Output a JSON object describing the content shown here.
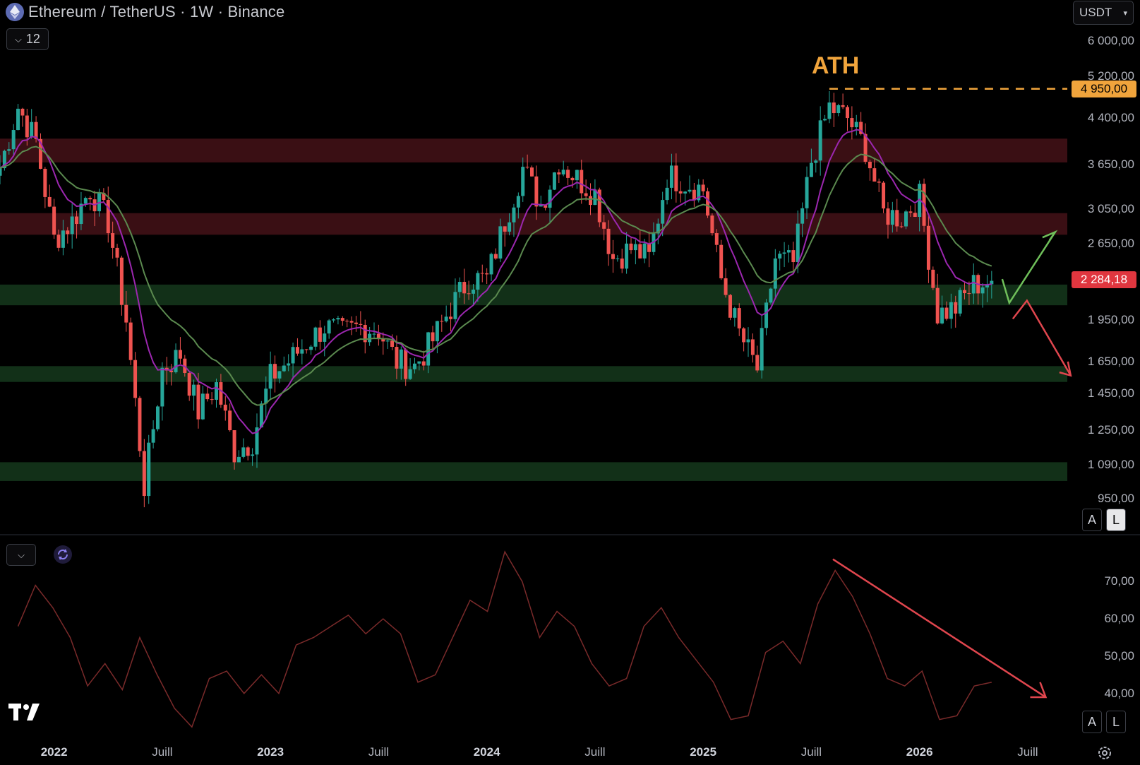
{
  "header": {
    "symbol_title": "Ethereum / TetherUS · 1W · Binance",
    "interval_badge": "12",
    "currency_select": "USDT"
  },
  "icons": [
    "ethereum-icon",
    "chevron-down-icon",
    "refresh-icon",
    "tradingview-logo",
    "settings-gear-icon"
  ],
  "annotation": {
    "ath_label": "ATH"
  },
  "price_axis": {
    "ticks": [
      "6 000,00",
      "5 200,00",
      "4 400,00",
      "3 650,00",
      "3 050,00",
      "2 650,00",
      "1 950,00",
      "1 650,00",
      "1 450,00",
      "1 250,00",
      "1 090,00",
      "950,00"
    ],
    "ath_tag": "4 950,00",
    "last_price_tag": "2 284,18"
  },
  "rsi_axis": {
    "ticks": [
      "70,00",
      "60,00",
      "50,00",
      "40,00"
    ]
  },
  "time_axis": {
    "labels": [
      "2022",
      "Juill",
      "2023",
      "Juill",
      "2024",
      "Juill",
      "2025",
      "Juill",
      "2026",
      "Juill"
    ]
  },
  "scale_buttons": {
    "auto": "A",
    "log": "L"
  },
  "colors": {
    "up": "#26a69a",
    "down": "#ef5350",
    "ema_fast": "#9c27b0",
    "ema_slow": "#5b8a4f",
    "resistance_zone": "#3a0f14",
    "support_zone": "#123018",
    "ath_line": "#f0a43c",
    "rsi_line": "#7a2a2a",
    "bull_arrow": "#6fbf5a",
    "bear_arrow": "#e0464e"
  },
  "chart_data": [
    {
      "type": "candlestick",
      "title": "Ethereum / TetherUS · 1W · Binance",
      "scale": "log",
      "ylim": [
        850,
        6500
      ],
      "x_range": [
        "2021-10",
        "2026-09"
      ],
      "ath": 4950,
      "last_price": 2284.18,
      "resistance_zones": [
        [
          3680,
          4050
        ],
        [
          2750,
          3000
        ]
      ],
      "support_zones": [
        [
          2070,
          2250
        ],
        [
          1520,
          1620
        ],
        [
          1020,
          1100
        ]
      ],
      "close_path": [
        {
          "x": "2021-10",
          "y": 3600
        },
        {
          "x": "2021-11",
          "y": 4600
        },
        {
          "x": "2021-12",
          "y": 4000
        },
        {
          "x": "2022-01",
          "y": 2700
        },
        {
          "x": "2022-02",
          "y": 2900
        },
        {
          "x": "2022-03",
          "y": 3300
        },
        {
          "x": "2022-04",
          "y": 2900
        },
        {
          "x": "2022-05",
          "y": 1950
        },
        {
          "x": "2022-06",
          "y": 1000
        },
        {
          "x": "2022-07",
          "y": 1600
        },
        {
          "x": "2022-08",
          "y": 1700
        },
        {
          "x": "2022-09",
          "y": 1350
        },
        {
          "x": "2022-10",
          "y": 1500
        },
        {
          "x": "2022-11",
          "y": 1150
        },
        {
          "x": "2022-12",
          "y": 1200
        },
        {
          "x": "2023-01",
          "y": 1550
        },
        {
          "x": "2023-02",
          "y": 1650
        },
        {
          "x": "2023-03",
          "y": 1780
        },
        {
          "x": "2023-04",
          "y": 1900
        },
        {
          "x": "2023-05",
          "y": 1850
        },
        {
          "x": "2023-06",
          "y": 1900
        },
        {
          "x": "2023-07",
          "y": 1870
        },
        {
          "x": "2023-08",
          "y": 1650
        },
        {
          "x": "2023-09",
          "y": 1620
        },
        {
          "x": "2023-10",
          "y": 1800
        },
        {
          "x": "2023-11",
          "y": 2050
        },
        {
          "x": "2023-12",
          "y": 2300
        },
        {
          "x": "2024-01",
          "y": 2300
        },
        {
          "x": "2024-02",
          "y": 2900
        },
        {
          "x": "2024-03",
          "y": 3600
        },
        {
          "x": "2024-04",
          "y": 3100
        },
        {
          "x": "2024-05",
          "y": 3700
        },
        {
          "x": "2024-06",
          "y": 3450
        },
        {
          "x": "2024-07",
          "y": 3250
        },
        {
          "x": "2024-08",
          "y": 2500
        },
        {
          "x": "2024-09",
          "y": 2600
        },
        {
          "x": "2024-10",
          "y": 2500
        },
        {
          "x": "2024-11",
          "y": 3500
        },
        {
          "x": "2024-12",
          "y": 3400
        },
        {
          "x": "2025-01",
          "y": 3300
        },
        {
          "x": "2025-02",
          "y": 2300
        },
        {
          "x": "2025-03",
          "y": 1850
        },
        {
          "x": "2025-04",
          "y": 1600
        },
        {
          "x": "2025-05",
          "y": 2500
        },
        {
          "x": "2025-06",
          "y": 2450
        },
        {
          "x": "2025-07",
          "y": 3700
        },
        {
          "x": "2025-08",
          "y": 4600
        },
        {
          "x": "2025-09",
          "y": 4400
        },
        {
          "x": "2025-10",
          "y": 3900
        },
        {
          "x": "2025-11",
          "y": 3000
        },
        {
          "x": "2025-12",
          "y": 2950
        },
        {
          "x": "2026-01",
          "y": 3200
        },
        {
          "x": "2026-02",
          "y": 2000
        },
        {
          "x": "2026-03",
          "y": 2050
        },
        {
          "x": "2026-04",
          "y": 2250
        },
        {
          "x": "2026-05",
          "y": 2284
        }
      ]
    },
    {
      "type": "line",
      "ylim": [
        28,
        82
      ],
      "values": [
        58,
        69,
        63,
        55,
        42,
        48,
        41,
        55,
        45,
        36,
        31,
        44,
        46,
        40,
        45,
        40,
        53,
        55,
        58,
        61,
        56,
        60,
        56,
        43,
        45,
        55,
        65,
        62,
        78,
        70,
        55,
        62,
        58,
        48,
        42,
        44,
        58,
        63,
        55,
        49,
        43,
        33,
        34,
        51,
        54,
        48,
        64,
        73,
        66,
        56,
        44,
        42,
        46,
        33,
        34,
        42,
        43
      ]
    }
  ]
}
